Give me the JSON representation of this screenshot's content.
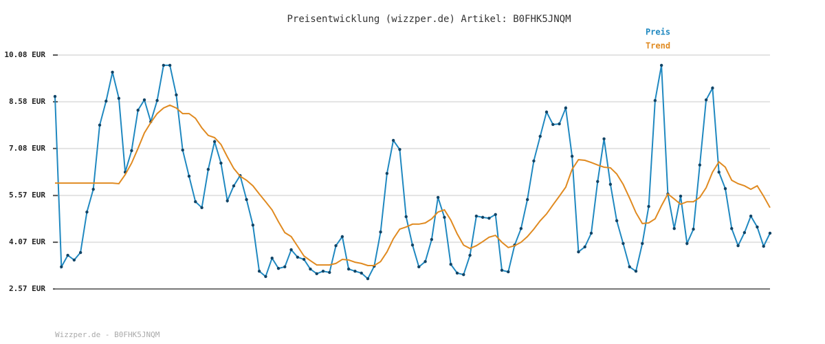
{
  "chart_data": {
    "type": "line",
    "title": "Preisentwicklung (wizzper.de) Artikel: B0FHK5JNQM",
    "footer": "Wizzper.de - B0FHK5JNQM",
    "grid": true,
    "legend": "top-right",
    "ylim": [
      2.57,
      10.08
    ],
    "yticks": [
      {
        "value": 10.08,
        "label": "10.08 EUR"
      },
      {
        "value": 8.58,
        "label": "8.58 EUR"
      },
      {
        "value": 7.08,
        "label": "7.08 EUR"
      },
      {
        "value": 5.57,
        "label": "5.57 EUR"
      },
      {
        "value": 4.07,
        "label": "4.07 EUR"
      },
      {
        "value": 2.57,
        "label": "2.57 EUR"
      }
    ],
    "categories": [
      null,
      null,
      null,
      null,
      null,
      null,
      null,
      null,
      null,
      null,
      null,
      null,
      null,
      null,
      null,
      null,
      null,
      null,
      null,
      null,
      null,
      null,
      null,
      null,
      null,
      null,
      null,
      null,
      null,
      null,
      null,
      null,
      null,
      null,
      null,
      null,
      null,
      null,
      null,
      null,
      null,
      null,
      null,
      null,
      null,
      null,
      null,
      null,
      null,
      null,
      null,
      null,
      null,
      null,
      null,
      null,
      null,
      null,
      null,
      null,
      null,
      null,
      null,
      null,
      null,
      null,
      null,
      null,
      null,
      null,
      null,
      null,
      null,
      null,
      null,
      null,
      null,
      null,
      null,
      null,
      null,
      null,
      null,
      null,
      null,
      null,
      null,
      null,
      null,
      null,
      null,
      null,
      null,
      null,
      null,
      null,
      null,
      null,
      null,
      null,
      null,
      null,
      null,
      null,
      null,
      null,
      null,
      null,
      null,
      null,
      null,
      null,
      null
    ],
    "series": [
      {
        "name": "Preis",
        "color": "#1f88c0",
        "markers": true,
        "values": [
          8.75,
          3.28,
          3.65,
          3.5,
          3.74,
          5.04,
          5.77,
          7.83,
          8.6,
          9.53,
          8.69,
          6.32,
          7.01,
          8.31,
          8.64,
          7.94,
          8.62,
          9.75,
          9.75,
          8.8,
          7.03,
          6.19,
          5.37,
          5.18,
          6.41,
          7.3,
          6.61,
          5.4,
          5.88,
          6.21,
          5.44,
          4.62,
          3.14,
          2.97,
          3.56,
          3.23,
          3.28,
          3.83,
          3.59,
          3.52,
          3.21,
          3.06,
          3.14,
          3.1,
          3.96,
          4.25,
          3.21,
          3.14,
          3.08,
          2.9,
          3.3,
          4.4,
          6.28,
          7.34,
          7.05,
          4.89,
          3.98,
          3.28,
          3.45,
          4.16,
          5.51,
          4.87,
          3.36,
          3.08,
          3.03,
          3.65,
          4.91,
          4.87,
          4.84,
          4.96,
          3.17,
          3.12,
          3.98,
          4.51,
          5.44,
          6.68,
          7.47,
          8.25,
          7.85,
          7.87,
          8.38,
          6.83,
          3.76,
          3.92,
          4.36,
          6.02,
          7.39,
          5.93,
          4.76,
          4.03,
          3.28,
          3.14,
          4.03,
          5.22,
          8.62,
          9.75,
          5.62,
          4.51,
          5.55,
          4.03,
          4.49,
          6.55,
          8.64,
          9.02,
          6.32,
          5.79,
          4.51,
          3.96,
          4.38,
          4.91,
          4.56,
          3.94,
          4.36
        ]
      },
      {
        "name": "Trend",
        "color": "#e08a20",
        "markers": false,
        "values": [
          5.97,
          5.97,
          5.97,
          5.97,
          5.97,
          5.97,
          5.97,
          5.97,
          5.97,
          5.97,
          5.95,
          6.24,
          6.61,
          7.08,
          7.58,
          7.91,
          8.2,
          8.38,
          8.47,
          8.38,
          8.2,
          8.2,
          8.05,
          7.74,
          7.5,
          7.43,
          7.21,
          6.81,
          6.44,
          6.19,
          6.06,
          5.88,
          5.62,
          5.37,
          5.11,
          4.73,
          4.38,
          4.25,
          3.94,
          3.63,
          3.48,
          3.34,
          3.34,
          3.34,
          3.39,
          3.52,
          3.5,
          3.43,
          3.39,
          3.32,
          3.32,
          3.45,
          3.76,
          4.18,
          4.49,
          4.56,
          4.65,
          4.65,
          4.69,
          4.82,
          5.04,
          5.11,
          4.78,
          4.34,
          3.98,
          3.87,
          3.96,
          4.09,
          4.23,
          4.29,
          4.07,
          3.9,
          3.96,
          4.07,
          4.25,
          4.49,
          4.76,
          4.98,
          5.27,
          5.55,
          5.84,
          6.41,
          6.72,
          6.7,
          6.63,
          6.55,
          6.48,
          6.46,
          6.26,
          5.93,
          5.49,
          5.02,
          4.67,
          4.69,
          4.82,
          5.24,
          5.62,
          5.46,
          5.29,
          5.37,
          5.37,
          5.51,
          5.82,
          6.32,
          6.65,
          6.48,
          6.06,
          5.95,
          5.88,
          5.77,
          5.88,
          5.55,
          5.18
        ]
      }
    ]
  }
}
